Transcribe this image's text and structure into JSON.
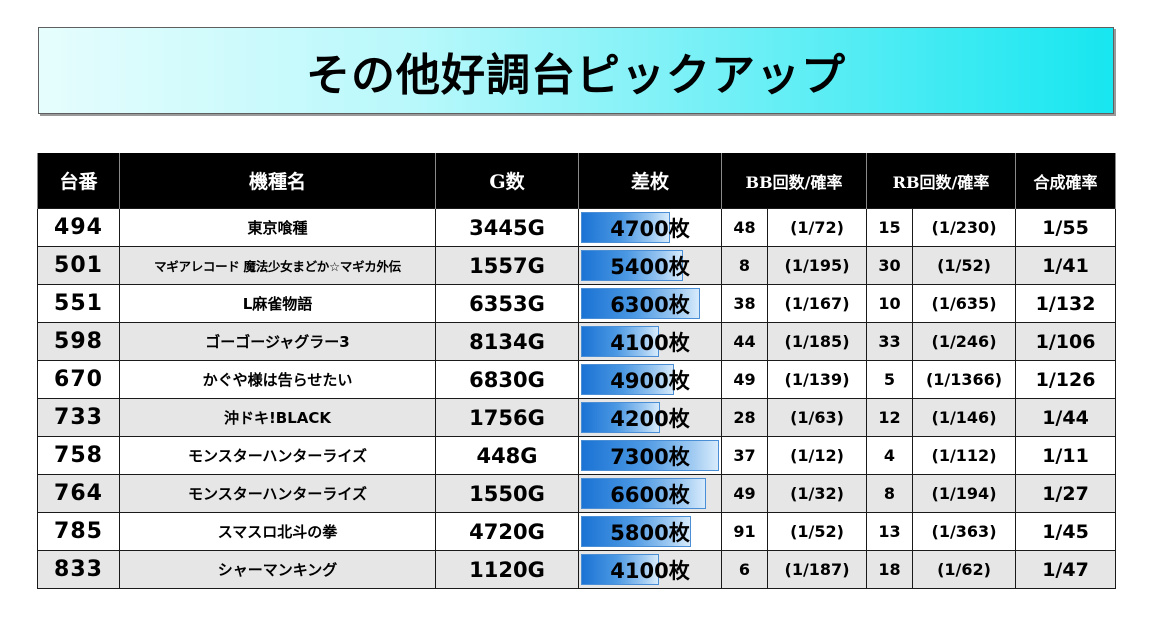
{
  "title": "その他好調台ピックアップ",
  "table": {
    "headers": {
      "machine": "台番",
      "model": "機種名",
      "games": "G数",
      "diff": "差枚",
      "bb": "BB回数/確率",
      "rb": "RB回数/確率",
      "combined": "合成確率"
    },
    "max_diff": 7300,
    "rows": [
      {
        "machine": "494",
        "model": "東京喰種",
        "games": "3445G",
        "diff": "4700枚",
        "diff_value": 4700,
        "bb_count": "48",
        "bb_prob": "(1/72)",
        "rb_count": "15",
        "rb_prob": "(1/230)",
        "combined": "1/55"
      },
      {
        "machine": "501",
        "model": "マギアレコード 魔法少女まどか☆マギカ外伝",
        "games": "1557G",
        "diff": "5400枚",
        "diff_value": 5400,
        "bb_count": "8",
        "bb_prob": "(1/195)",
        "rb_count": "30",
        "rb_prob": "(1/52)",
        "combined": "1/41"
      },
      {
        "machine": "551",
        "model": "L麻雀物語",
        "games": "6353G",
        "diff": "6300枚",
        "diff_value": 6300,
        "bb_count": "38",
        "bb_prob": "(1/167)",
        "rb_count": "10",
        "rb_prob": "(1/635)",
        "combined": "1/132"
      },
      {
        "machine": "598",
        "model": "ゴーゴージャグラー3",
        "games": "8134G",
        "diff": "4100枚",
        "diff_value": 4100,
        "bb_count": "44",
        "bb_prob": "(1/185)",
        "rb_count": "33",
        "rb_prob": "(1/246)",
        "combined": "1/106"
      },
      {
        "machine": "670",
        "model": "かぐや様は告らせたい",
        "games": "6830G",
        "diff": "4900枚",
        "diff_value": 4900,
        "bb_count": "49",
        "bb_prob": "(1/139)",
        "rb_count": "5",
        "rb_prob": "(1/1366)",
        "combined": "1/126"
      },
      {
        "machine": "733",
        "model": "沖ドキ!BLACK",
        "games": "1756G",
        "diff": "4200枚",
        "diff_value": 4200,
        "bb_count": "28",
        "bb_prob": "(1/63)",
        "rb_count": "12",
        "rb_prob": "(1/146)",
        "combined": "1/44"
      },
      {
        "machine": "758",
        "model": "モンスターハンターライズ",
        "games": "448G",
        "diff": "7300枚",
        "diff_value": 7300,
        "bb_count": "37",
        "bb_prob": "(1/12)",
        "rb_count": "4",
        "rb_prob": "(1/112)",
        "combined": "1/11"
      },
      {
        "machine": "764",
        "model": "モンスターハンターライズ",
        "games": "1550G",
        "diff": "6600枚",
        "diff_value": 6600,
        "bb_count": "49",
        "bb_prob": "(1/32)",
        "rb_count": "8",
        "rb_prob": "(1/194)",
        "combined": "1/27"
      },
      {
        "machine": "785",
        "model": "スマスロ北斗の拳",
        "games": "4720G",
        "diff": "5800枚",
        "diff_value": 5800,
        "bb_count": "91",
        "bb_prob": "(1/52)",
        "rb_count": "13",
        "rb_prob": "(1/363)",
        "combined": "1/45"
      },
      {
        "machine": "833",
        "model": "シャーマンキング",
        "games": "1120G",
        "diff": "4100枚",
        "diff_value": 4100,
        "bb_count": "6",
        "bb_prob": "(1/187)",
        "rb_count": "18",
        "rb_prob": "(1/62)",
        "combined": "1/47"
      }
    ]
  }
}
